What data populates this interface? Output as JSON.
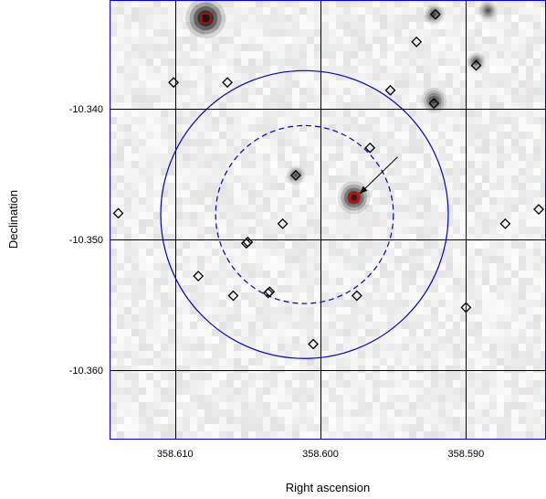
{
  "chart_data": {
    "type": "scatter",
    "title": "",
    "xlabel": "Right ascension",
    "ylabel": "Declination",
    "x_axis_reversed": true,
    "xlim": [
      358.6145,
      358.5845
    ],
    "ylim": [
      -10.3653,
      -10.3317
    ],
    "x_ticks": [
      358.61,
      358.6,
      358.59
    ],
    "x_tick_labels": [
      "358.610",
      "358.600",
      "358.590"
    ],
    "y_ticks": [
      -10.34,
      -10.35,
      -10.36
    ],
    "y_tick_labels": [
      "-10.340",
      "-10.350",
      "-10.360"
    ],
    "grid": true,
    "background": "grayscale sky image",
    "colors": {
      "frame": "#0000cc",
      "circles": "#0000cc",
      "grid": "#000000",
      "markers": "#000000",
      "highlight": "#dd0000",
      "arrow": "#000000"
    },
    "catalog_sources": [
      {
        "x": 358.6101,
        "y": -10.338
      },
      {
        "x": 358.6064,
        "y": -10.338
      },
      {
        "x": 358.5921,
        "y": -10.3328
      },
      {
        "x": 358.5934,
        "y": -10.3349
      },
      {
        "x": 358.5893,
        "y": -10.3367
      },
      {
        "x": 358.5952,
        "y": -10.3386
      },
      {
        "x": 358.5922,
        "y": -10.3396
      },
      {
        "x": 358.5966,
        "y": -10.343
      },
      {
        "x": 358.6017,
        "y": -10.3451
      },
      {
        "x": 358.6026,
        "y": -10.3488
      },
      {
        "x": 358.605,
        "y": -10.3502
      },
      {
        "x": 358.6051,
        "y": -10.3503
      },
      {
        "x": 358.6139,
        "y": -10.348
      },
      {
        "x": 358.6084,
        "y": -10.3528
      },
      {
        "x": 358.606,
        "y": -10.3543
      },
      {
        "x": 358.6035,
        "y": -10.354
      },
      {
        "x": 358.6036,
        "y": -10.3541
      },
      {
        "x": 358.5975,
        "y": -10.3543
      },
      {
        "x": 358.59,
        "y": -10.3552
      },
      {
        "x": 358.6005,
        "y": -10.358
      },
      {
        "x": 358.5873,
        "y": -10.3488
      },
      {
        "x": 358.585,
        "y": -10.3477
      }
    ],
    "highlighted_sources": [
      {
        "x": 358.6079,
        "y": -10.3331,
        "shape": "square"
      },
      {
        "x": 358.5977,
        "y": -10.3468,
        "shape": "square"
      },
      {
        "x": 358.5977,
        "y": -10.3468,
        "shape": "circle"
      }
    ],
    "bright_sources": [
      {
        "x": 358.6079,
        "y": -10.3331,
        "size": 1.0
      },
      {
        "x": 358.5977,
        "y": -10.3468,
        "size": 0.75
      },
      {
        "x": 358.5922,
        "y": -10.3394,
        "size": 0.5
      },
      {
        "x": 358.5922,
        "y": -10.3328,
        "size": 0.35
      },
      {
        "x": 358.6017,
        "y": -10.3451,
        "size": 0.3
      },
      {
        "x": 358.5893,
        "y": -10.3364,
        "size": 0.3
      },
      {
        "x": 358.5885,
        "y": -10.3325,
        "size": 0.3
      }
    ],
    "circles": [
      {
        "center": [
          358.6011,
          -10.3481
        ],
        "radius_deg": 0.011,
        "style": "solid"
      },
      {
        "center": [
          358.6011,
          -10.3481
        ],
        "radius_deg": 0.0068,
        "style": "dashed"
      }
    ],
    "arrow": {
      "from": [
        358.5947,
        -10.3437
      ],
      "to": [
        358.5973,
        -10.3465
      ]
    }
  }
}
